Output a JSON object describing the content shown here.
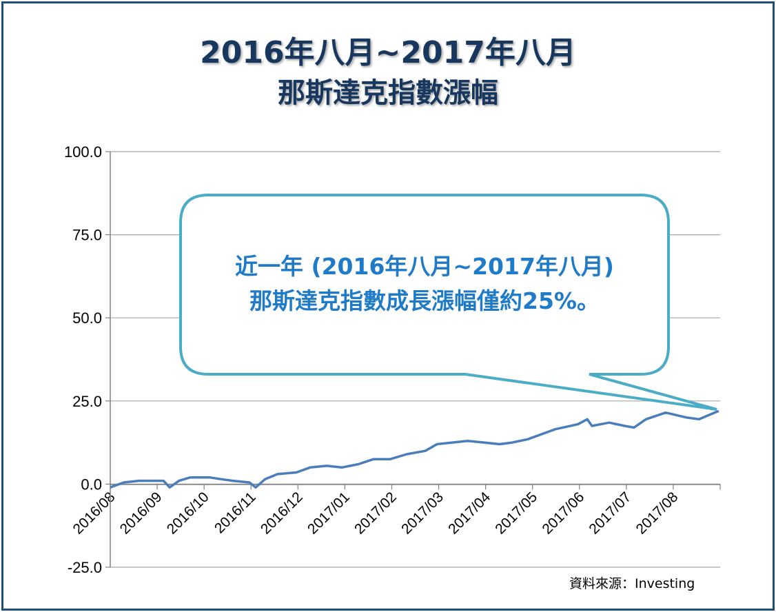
{
  "header": {
    "title_line1": "2016年八月~2017年八月",
    "title_line2": "那斯達克指數漲幅"
  },
  "callout": {
    "line1": "近一年 (2016年八月~2017年八月)",
    "line2": "那斯達克指數成長漲幅僅約25%。",
    "fill": "#ffffff",
    "border_color": "#4bacc6",
    "text_color": "#1f7bc7"
  },
  "source": "資料來源：Investing",
  "chart_data": {
    "type": "line",
    "ylim": [
      -25,
      100
    ],
    "yticks": [
      -25,
      0,
      25,
      50,
      75,
      100
    ],
    "ytick_labels": [
      "-25.0",
      "0.0",
      "25.0",
      "50.0",
      "75.0",
      "100.0"
    ],
    "xtick_labels": [
      "2016/08",
      "2016/09",
      "2016/10",
      "2016/11",
      "2016/12",
      "2017/01",
      "2017/02",
      "2017/03",
      "2017/04",
      "2017/05",
      "2017/06",
      "2017/07",
      "2017/08"
    ],
    "grid": true,
    "line_color": "#4a7ebb",
    "series": [
      {
        "x": [
          "2016/08/01",
          "2016/08/10",
          "2016/08/20",
          "2016/08/31",
          "2016/09/05",
          "2016/09/09",
          "2016/09/15",
          "2016/09/22",
          "2016/09/30",
          "2016/10/05",
          "2016/10/12",
          "2016/10/20",
          "2016/10/31",
          "2016/11/04",
          "2016/11/10",
          "2016/11/18",
          "2016/11/30",
          "2016/12/09",
          "2016/12/20",
          "2016/12/30",
          "2017/01/10",
          "2017/01/20",
          "2017/01/31",
          "2017/02/10",
          "2017/02/21",
          "2017/02/28",
          "2017/03/10",
          "2017/03/20",
          "2017/03/31",
          "2017/04/10",
          "2017/04/18",
          "2017/04/28",
          "2017/05/10",
          "2017/05/16",
          "2017/05/31",
          "2017/06/06",
          "2017/06/09",
          "2017/06/20",
          "2017/06/30",
          "2017/07/06",
          "2017/07/14",
          "2017/07/27",
          "2017/08/10",
          "2017/08/18",
          "2017/08/31"
        ],
        "y": [
          -1.0,
          0.5,
          1.0,
          1.0,
          1.0,
          -1.0,
          1.0,
          2.0,
          2.0,
          2.0,
          1.5,
          1.0,
          0.5,
          -1.0,
          1.5,
          3.0,
          3.5,
          5.0,
          5.5,
          5.0,
          6.0,
          7.5,
          7.5,
          9.0,
          10.0,
          12.0,
          12.5,
          13.0,
          12.5,
          12.0,
          12.5,
          13.5,
          15.5,
          16.5,
          18.0,
          19.5,
          17.5,
          18.5,
          17.5,
          17.0,
          19.5,
          21.5,
          20.0,
          19.5,
          22.0
        ]
      }
    ]
  }
}
